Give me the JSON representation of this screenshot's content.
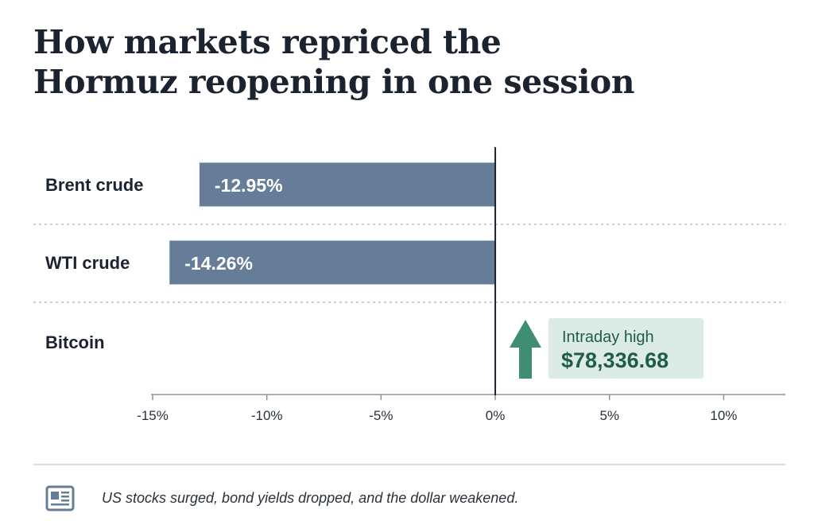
{
  "title": "How markets repriced the Hormuz reopening in one session",
  "title_lines": [
    "How markets repriced the",
    "Hormuz reopening in one session"
  ],
  "chart_data": {
    "type": "bar",
    "orientation": "horizontal",
    "categories": [
      "Brent crude",
      "WTI crude",
      "Bitcoin"
    ],
    "values": [
      -12.95,
      -14.26,
      null
    ],
    "data_labels": [
      "-12.95%",
      "-14.26%",
      ""
    ],
    "xlim": [
      -15,
      12.7
    ],
    "xticks": [
      -15,
      -10,
      -5,
      0,
      5,
      10
    ],
    "xtick_labels": [
      "-15%",
      "-10%",
      "-5%",
      "0%",
      "5%",
      "10%"
    ],
    "grid": false,
    "annotation": {
      "category": "Bitcoin",
      "direction": "up",
      "label": "Intraday high",
      "value": "$78,336.68"
    },
    "colors": {
      "bar": "#667d99",
      "arrow": "#3f8d73",
      "annotation_bg": "#dcebe5",
      "annotation_text": "#1f5e46"
    }
  },
  "footer": {
    "icon": "newspaper-icon",
    "note": "US stocks surged, bond yields dropped, and the dollar weakened."
  }
}
